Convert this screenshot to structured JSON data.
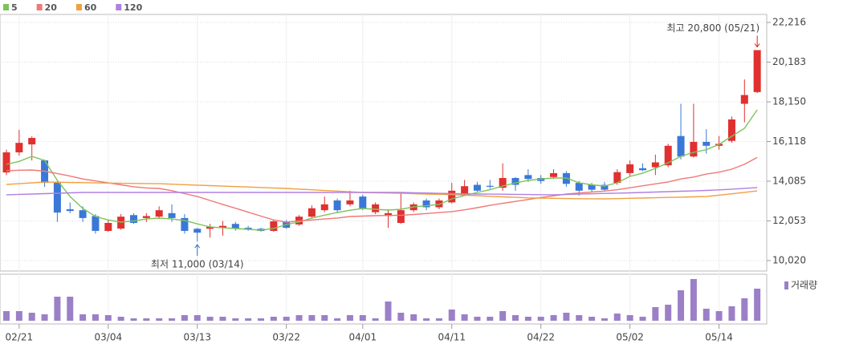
{
  "chart_data": {
    "type": "candlestick",
    "up_color": "#e03030",
    "down_color": "#3a78d8",
    "volume_color": "#9b80c8",
    "categories": [
      null,
      "02/21",
      null,
      null,
      null,
      null,
      null,
      null,
      "03/04",
      null,
      null,
      null,
      null,
      null,
      null,
      "03/13",
      null,
      null,
      null,
      null,
      null,
      null,
      "03/22",
      null,
      null,
      null,
      null,
      null,
      "04/01",
      null,
      null,
      null,
      null,
      null,
      null,
      "04/11",
      null,
      null,
      null,
      null,
      null,
      null,
      "04/22",
      null,
      null,
      null,
      null,
      null,
      null,
      "05/02",
      null,
      null,
      null,
      null,
      null,
      null,
      "05/14",
      null,
      null,
      null
    ],
    "open": [
      14536,
      15563,
      15970,
      15150,
      14000,
      12650,
      12600,
      12300,
      11540,
      11660,
      12350,
      12200,
      12270,
      12450,
      12200,
      11650,
      11650,
      11700,
      11900,
      11700,
      11650,
      11540,
      12000,
      11870,
      12270,
      12600,
      13100,
      12900,
      13300,
      12500,
      12300,
      11950,
      12600,
      13100,
      12750,
      13000,
      13400,
      13900,
      13850,
      13750,
      14250,
      14400,
      14250,
      14300,
      14500,
      14000,
      13900,
      13900,
      14000,
      14500,
      14750,
      14800,
      14900,
      16400,
      15350,
      16100,
      15900,
      16150,
      18050,
      18650
    ],
    "high": [
      15700,
      16713,
      16380,
      15200,
      14100,
      13000,
      12800,
      12400,
      12100,
      12400,
      12450,
      12450,
      12800,
      12900,
      12400,
      11700,
      11900,
      12050,
      12000,
      11800,
      11700,
      12100,
      12100,
      12350,
      12850,
      13300,
      13200,
      13600,
      13400,
      13000,
      12650,
      13500,
      13000,
      13200,
      13200,
      14000,
      14150,
      14050,
      14150,
      15000,
      14300,
      14700,
      14400,
      14700,
      14600,
      14100,
      14000,
      14050,
      14700,
      15150,
      15000,
      15450,
      16000,
      18050,
      18050,
      16750,
      16400,
      17400,
      19300,
      20800
    ],
    "low": [
      14400,
      15400,
      15150,
      13800,
      12000,
      12450,
      12000,
      11400,
      11500,
      11600,
      11900,
      12000,
      12150,
      12000,
      11400,
      11000,
      11200,
      11300,
      11550,
      11550,
      11500,
      11500,
      11650,
      11800,
      12200,
      12500,
      12450,
      12800,
      12600,
      12400,
      11700,
      11900,
      12500,
      12600,
      12650,
      12950,
      13350,
      13550,
      13700,
      13600,
      13600,
      14050,
      13950,
      14200,
      13800,
      13350,
      13550,
      13600,
      13900,
      14350,
      14600,
      14400,
      14800,
      15200,
      15300,
      15500,
      15700,
      16050,
      17100,
      18600
    ],
    "close": [
      15563,
      16050,
      16300,
      14000,
      12480,
      12560,
      12200,
      11540,
      11950,
      12270,
      11950,
      12300,
      12600,
      12200,
      11540,
      11450,
      11750,
      11800,
      11650,
      11600,
      11540,
      12030,
      11700,
      12270,
      12700,
      12900,
      12600,
      13100,
      12700,
      12900,
      12450,
      12600,
      12900,
      12750,
      13100,
      13600,
      13830,
      13600,
      13800,
      14250,
      13900,
      14200,
      14100,
      14500,
      13950,
      13600,
      13650,
      13650,
      14550,
      14950,
      14650,
      15050,
      15900,
      15350,
      16100,
      15900,
      16000,
      17250,
      18500,
      20800
    ],
    "volume": [
      12,
      12,
      10,
      8,
      30,
      30,
      8,
      8,
      7,
      5,
      3,
      3,
      3,
      3,
      7,
      7,
      5,
      5,
      3,
      3,
      3,
      5,
      5,
      7,
      7,
      7,
      3,
      7,
      7,
      3,
      24,
      10,
      8,
      3,
      3,
      14,
      8,
      5,
      5,
      12,
      7,
      5,
      5,
      7,
      10,
      7,
      5,
      3,
      9,
      7,
      5,
      17,
      20,
      38,
      52,
      15,
      12,
      18,
      28,
      40
    ],
    "volume_label": "거래량",
    "vlim": [
      0,
      55
    ],
    "moving_averages": [
      {
        "name": "5",
        "color": "#7cc35a",
        "values": [
          14947,
          15100,
          15357,
          15150,
          14125,
          13300,
          12688,
          12278,
          12100,
          11990,
          12050,
          12150,
          12195,
          12150,
          12072,
          11900,
          11744,
          11700,
          11662,
          11620,
          11580,
          11662,
          11867,
          12000,
          12195,
          12350,
          12483,
          12600,
          12688,
          12650,
          12606,
          12650,
          12770,
          12830,
          12893,
          13181,
          13350,
          13510,
          13650,
          13838,
          14000,
          14125,
          14200,
          14248,
          14248,
          14002,
          13900,
          13838,
          14002,
          14330,
          14500,
          14741,
          15030,
          15357,
          15563,
          15700,
          15973,
          16384,
          16795,
          17740
        ]
      },
      {
        "name": "20",
        "color": "#f07878",
        "values": [
          14620,
          14650,
          14660,
          14600,
          14480,
          14350,
          14200,
          14100,
          14000,
          13900,
          13800,
          13740,
          13714,
          13600,
          13450,
          13300,
          13100,
          12900,
          12700,
          12500,
          12300,
          12100,
          11990,
          12050,
          12100,
          12150,
          12200,
          12278,
          12300,
          12320,
          12330,
          12340,
          12380,
          12430,
          12480,
          12530,
          12620,
          12730,
          12850,
          12950,
          13050,
          13150,
          13250,
          13340,
          13430,
          13480,
          13530,
          13580,
          13650,
          13750,
          13850,
          13950,
          14050,
          14200,
          14300,
          14450,
          14550,
          14700,
          14950,
          15300
        ]
      },
      {
        "name": "60",
        "color": "#f0a040",
        "values": [
          13920,
          13960,
          14000,
          14040,
          14030,
          14020,
          14010,
          14000,
          13990,
          13980,
          13970,
          13965,
          13960,
          13935,
          13910,
          13885,
          13860,
          13835,
          13810,
          13790,
          13765,
          13740,
          13714,
          13680,
          13645,
          13610,
          13580,
          13545,
          13510,
          13495,
          13480,
          13465,
          13450,
          13430,
          13415,
          13400,
          13370,
          13345,
          13315,
          13285,
          13260,
          13230,
          13220,
          13210,
          13200,
          13190,
          13185,
          13180,
          13195,
          13210,
          13225,
          13240,
          13255,
          13270,
          13285,
          13300,
          13370,
          13440,
          13515,
          13590
        ]
      },
      {
        "name": "120",
        "color": "#b080e0",
        "values": [
          13390,
          13410,
          13430,
          13450,
          13470,
          13490,
          13510,
          13510,
          13510,
          13510,
          13510,
          13510,
          13510,
          13510,
          13510,
          13510,
          13510,
          13510,
          13510,
          13510,
          13510,
          13510,
          13510,
          13510,
          13510,
          13510,
          13510,
          13510,
          13510,
          13510,
          13510,
          13510,
          13495,
          13480,
          13465,
          13450,
          13440,
          13430,
          13425,
          13420,
          13410,
          13405,
          13395,
          13390,
          13405,
          13425,
          13440,
          13460,
          13475,
          13490,
          13510,
          13530,
          13550,
          13570,
          13590,
          13615,
          13640,
          13680,
          13720,
          13760
        ]
      }
    ],
    "ylim": [
      9486,
      22627
    ],
    "yticks": [
      {
        "value": 10020,
        "label": "10,020"
      },
      {
        "value": 12053,
        "label": "12,053"
      },
      {
        "value": 14085,
        "label": "14,085"
      },
      {
        "value": 16118,
        "label": "16,118"
      },
      {
        "value": 18150,
        "label": "18,150"
      },
      {
        "value": 20183,
        "label": "20,183"
      },
      {
        "value": 22216,
        "label": "22,216"
      }
    ],
    "grid": true,
    "annotations": [
      {
        "text": "최고 20,800 (05/21)",
        "color": "#e02020",
        "at": "high"
      },
      {
        "text": "최저 11,000 (03/14)",
        "color": "#2a6fd0",
        "at": "low"
      }
    ]
  }
}
